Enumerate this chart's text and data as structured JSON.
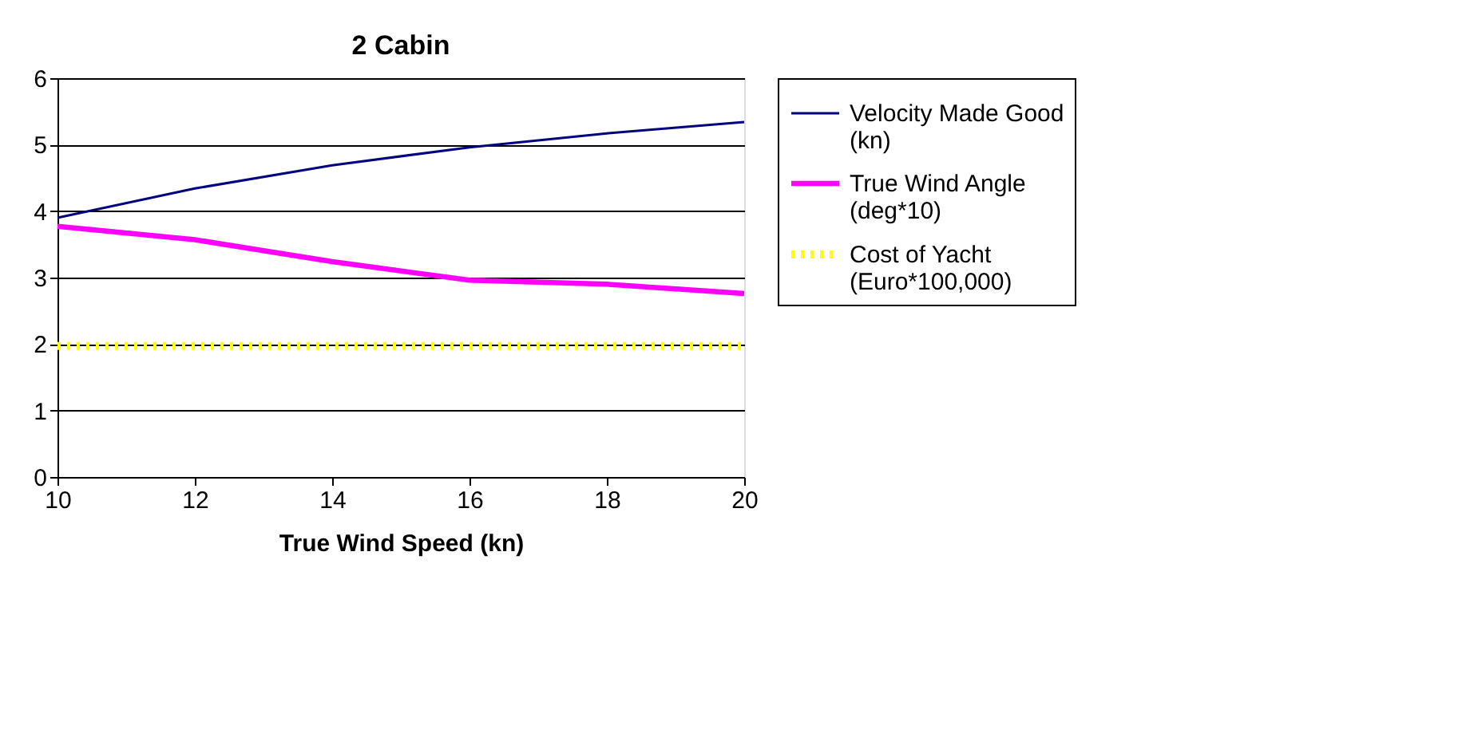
{
  "chart_data": {
    "type": "line",
    "title": "2 Cabin",
    "xlabel": "True Wind Speed (kn)",
    "x": [
      10,
      12,
      14,
      16,
      18,
      20
    ],
    "series": [
      {
        "name": "Velocity Made Good (kn)",
        "color": "#000080",
        "line_style": "solid",
        "values": [
          3.9,
          4.34,
          4.69,
          4.96,
          5.17,
          5.34
        ]
      },
      {
        "name": "True Wind Angle (deg*10)",
        "color": "#ff00ff",
        "line_style": "solid",
        "values": [
          3.77,
          3.57,
          3.24,
          2.96,
          2.9,
          2.76
        ]
      },
      {
        "name": "Cost of Yacht (Euro*100,000)",
        "color": "#ffff00",
        "line_style": "dotted",
        "values": [
          1.97,
          1.97,
          1.97,
          1.97,
          1.97,
          1.97
        ]
      }
    ],
    "xlim": [
      10,
      20
    ],
    "xticks": [
      10,
      12,
      14,
      16,
      18,
      20
    ],
    "ylim": [
      0,
      6
    ],
    "yticks": [
      0,
      1,
      2,
      3,
      4,
      5,
      6
    ],
    "grid": "y",
    "legend": "right",
    "marker": "none"
  }
}
